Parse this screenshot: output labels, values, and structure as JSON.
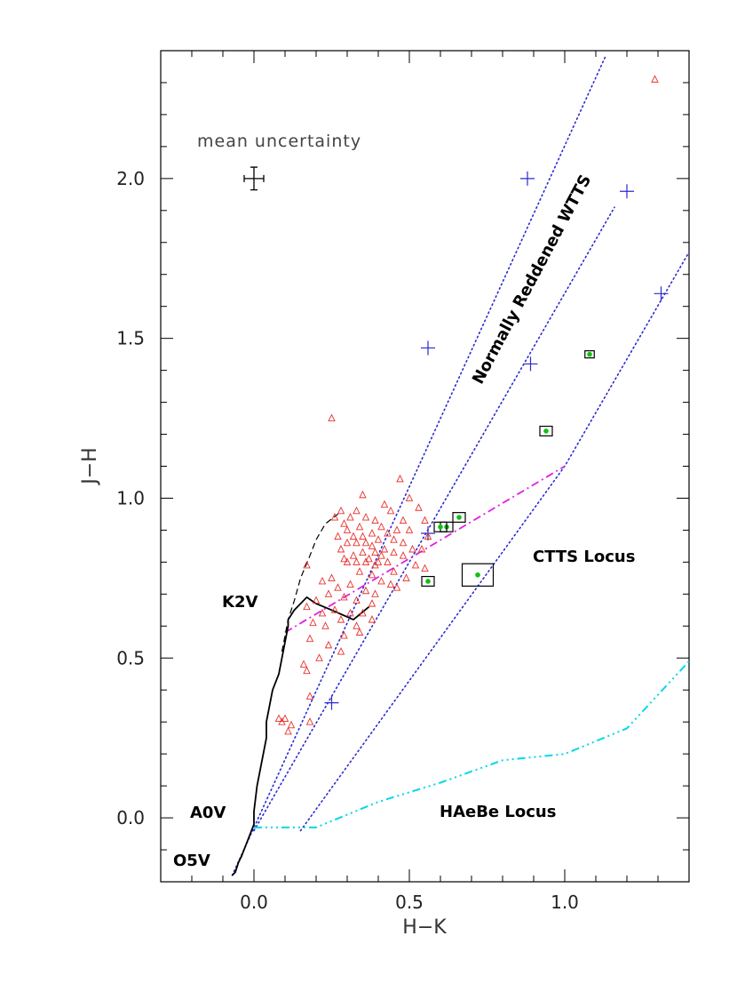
{
  "chart_data": {
    "type": "scatter",
    "title": "",
    "xlabel": "H−K",
    "ylabel": "J−H",
    "xlim": [
      -0.3,
      1.4
    ],
    "ylim": [
      -0.2,
      2.4
    ],
    "grid": false,
    "x_ticks": [
      {
        "value": 0.0,
        "label": "0.0"
      },
      {
        "value": 0.5,
        "label": "0.5"
      },
      {
        "value": 1.0,
        "label": "1.0"
      }
    ],
    "y_ticks": [
      {
        "value": 0.0,
        "label": "0.0"
      },
      {
        "value": 0.5,
        "label": "0.5"
      },
      {
        "value": 1.0,
        "label": "1.0"
      },
      {
        "value": 1.5,
        "label": "1.5"
      },
      {
        "value": 2.0,
        "label": "2.0"
      }
    ],
    "annotations": {
      "mean_uncertainty": "mean uncertainty",
      "reddened_wtts": "Normally Reddened WTTS",
      "ctts_locus": "CTTS Locus",
      "haebe_locus": "HAeBe Locus",
      "k2v": "K2V",
      "a0v": "A0V",
      "o5v": "O5V"
    },
    "mean_uncertainty_point": {
      "x": 0.0,
      "y": 2.0,
      "xerr": 0.02,
      "yerr": 0.03
    },
    "colors": {
      "triangles": "#e8302b",
      "reddening": "#2a2ad0",
      "ctts": "#e020e0",
      "haebe": "#00d8e8",
      "green": "#10c010",
      "axis": "#000000"
    },
    "dwarf_sequence": [
      [
        -0.07,
        -0.18
      ],
      [
        -0.06,
        -0.17
      ],
      [
        -0.05,
        -0.14
      ],
      [
        -0.04,
        -0.12
      ],
      [
        -0.02,
        -0.07
      ],
      [
        0.0,
        -0.02
      ],
      [
        0.0,
        0.02
      ],
      [
        0.01,
        0.1
      ],
      [
        0.03,
        0.2
      ],
      [
        0.04,
        0.25
      ],
      [
        0.04,
        0.3
      ],
      [
        0.05,
        0.35
      ],
      [
        0.06,
        0.4
      ],
      [
        0.08,
        0.45
      ],
      [
        0.09,
        0.5
      ],
      [
        0.1,
        0.55
      ],
      [
        0.11,
        0.6
      ],
      [
        0.11,
        0.62
      ],
      [
        0.13,
        0.65
      ],
      [
        0.17,
        0.69
      ],
      [
        0.2,
        0.67
      ],
      [
        0.25,
        0.65
      ],
      [
        0.32,
        0.62
      ],
      [
        0.37,
        0.66
      ]
    ],
    "giant_sequence": [
      [
        0.09,
        0.52
      ],
      [
        0.11,
        0.62
      ],
      [
        0.13,
        0.68
      ],
      [
        0.15,
        0.75
      ],
      [
        0.18,
        0.82
      ],
      [
        0.2,
        0.87
      ],
      [
        0.23,
        0.92
      ],
      [
        0.27,
        0.95
      ]
    ],
    "reddening_lines": [
      [
        [
          -0.07,
          -0.18
        ],
        [
          1.13,
          2.38
        ]
      ],
      [
        [
          0.0,
          -0.04
        ],
        [
          1.16,
          1.91
        ]
      ],
      [
        [
          0.15,
          -0.04
        ],
        [
          1.0,
          1.1
        ],
        [
          1.4,
          1.77
        ]
      ]
    ],
    "reddening_markers": [
      [
        0.25,
        0.36
      ],
      [
        0.56,
        1.47
      ],
      [
        0.88,
        2.0
      ],
      [
        0.56,
        0.89
      ],
      [
        0.89,
        1.42
      ],
      [
        1.2,
        1.96
      ],
      [
        1.31,
        1.64
      ]
    ],
    "ctts_locus_line": [
      [
        0.1,
        0.58
      ],
      [
        1.0,
        1.1
      ]
    ],
    "haebe_locus_line": [
      [
        0.0,
        -0.03
      ],
      [
        0.2,
        -0.03
      ],
      [
        0.4,
        0.05
      ],
      [
        0.6,
        0.11
      ],
      [
        0.8,
        0.18
      ],
      [
        1.0,
        0.2
      ],
      [
        1.2,
        0.28
      ],
      [
        1.4,
        0.49
      ]
    ],
    "triangle_points": [
      [
        1.29,
        2.31
      ],
      [
        0.25,
        1.25
      ],
      [
        0.47,
        1.06
      ],
      [
        0.35,
        1.01
      ],
      [
        0.5,
        1.0
      ],
      [
        0.42,
        0.98
      ],
      [
        0.53,
        0.97
      ],
      [
        0.28,
        0.96
      ],
      [
        0.33,
        0.96
      ],
      [
        0.44,
        0.96
      ],
      [
        0.26,
        0.94
      ],
      [
        0.31,
        0.94
      ],
      [
        0.36,
        0.94
      ],
      [
        0.48,
        0.93
      ],
      [
        0.55,
        0.93
      ],
      [
        0.39,
        0.93
      ],
      [
        0.29,
        0.92
      ],
      [
        0.34,
        0.91
      ],
      [
        0.41,
        0.91
      ],
      [
        0.46,
        0.9
      ],
      [
        0.5,
        0.9
      ],
      [
        0.3,
        0.9
      ],
      [
        0.38,
        0.89
      ],
      [
        0.43,
        0.89
      ],
      [
        0.35,
        0.88
      ],
      [
        0.32,
        0.88
      ],
      [
        0.56,
        0.88
      ],
      [
        0.27,
        0.88
      ],
      [
        0.4,
        0.87
      ],
      [
        0.45,
        0.87
      ],
      [
        0.48,
        0.86
      ],
      [
        0.36,
        0.86
      ],
      [
        0.33,
        0.86
      ],
      [
        0.3,
        0.86
      ],
      [
        0.38,
        0.85
      ],
      [
        0.42,
        0.84
      ],
      [
        0.51,
        0.84
      ],
      [
        0.54,
        0.84
      ],
      [
        0.28,
        0.84
      ],
      [
        0.35,
        0.83
      ],
      [
        0.39,
        0.83
      ],
      [
        0.45,
        0.83
      ],
      [
        0.32,
        0.82
      ],
      [
        0.41,
        0.82
      ],
      [
        0.48,
        0.82
      ],
      [
        0.37,
        0.81
      ],
      [
        0.29,
        0.81
      ],
      [
        0.33,
        0.8
      ],
      [
        0.36,
        0.8
      ],
      [
        0.4,
        0.8
      ],
      [
        0.43,
        0.8
      ],
      [
        0.3,
        0.8
      ],
      [
        0.52,
        0.79
      ],
      [
        0.39,
        0.79
      ],
      [
        0.17,
        0.79
      ],
      [
        0.55,
        0.78
      ],
      [
        0.34,
        0.77
      ],
      [
        0.45,
        0.77
      ],
      [
        0.38,
        0.76
      ],
      [
        0.25,
        0.75
      ],
      [
        0.49,
        0.75
      ],
      [
        0.41,
        0.74
      ],
      [
        0.22,
        0.74
      ],
      [
        0.31,
        0.73
      ],
      [
        0.44,
        0.73
      ],
      [
        0.27,
        0.72
      ],
      [
        0.46,
        0.72
      ],
      [
        0.36,
        0.71
      ],
      [
        0.39,
        0.7
      ],
      [
        0.24,
        0.7
      ],
      [
        0.29,
        0.69
      ],
      [
        0.2,
        0.68
      ],
      [
        0.33,
        0.68
      ],
      [
        0.38,
        0.67
      ],
      [
        0.17,
        0.66
      ],
      [
        0.26,
        0.65
      ],
      [
        0.31,
        0.64
      ],
      [
        0.22,
        0.64
      ],
      [
        0.35,
        0.64
      ],
      [
        0.28,
        0.62
      ],
      [
        0.38,
        0.62
      ],
      [
        0.19,
        0.61
      ],
      [
        0.23,
        0.6
      ],
      [
        0.33,
        0.6
      ],
      [
        0.34,
        0.58
      ],
      [
        0.29,
        0.57
      ],
      [
        0.18,
        0.56
      ],
      [
        0.24,
        0.54
      ],
      [
        0.28,
        0.52
      ],
      [
        0.21,
        0.5
      ],
      [
        0.16,
        0.48
      ],
      [
        0.17,
        0.46
      ],
      [
        0.18,
        0.38
      ],
      [
        0.1,
        0.31
      ],
      [
        0.08,
        0.31
      ],
      [
        0.09,
        0.3
      ],
      [
        0.18,
        0.3
      ],
      [
        0.12,
        0.29
      ],
      [
        0.11,
        0.27
      ]
    ],
    "green_points": [
      {
        "x": 1.08,
        "y": 1.45,
        "xerr": 0.015,
        "yerr": 0.01
      },
      {
        "x": 0.94,
        "y": 1.21,
        "xerr": 0.02,
        "yerr": 0.015
      },
      {
        "x": 0.66,
        "y": 0.94,
        "xerr": 0.02,
        "yerr": 0.015
      },
      {
        "x": 0.62,
        "y": 0.91,
        "xerr": 0.02,
        "yerr": 0.015
      },
      {
        "x": 0.6,
        "y": 0.91,
        "xerr": 0.02,
        "yerr": 0.015
      },
      {
        "x": 0.56,
        "y": 0.74,
        "xerr": 0.02,
        "yerr": 0.015
      },
      {
        "x": 0.72,
        "y": 0.76,
        "xerr": 0.05,
        "yerr": 0.035
      }
    ]
  }
}
